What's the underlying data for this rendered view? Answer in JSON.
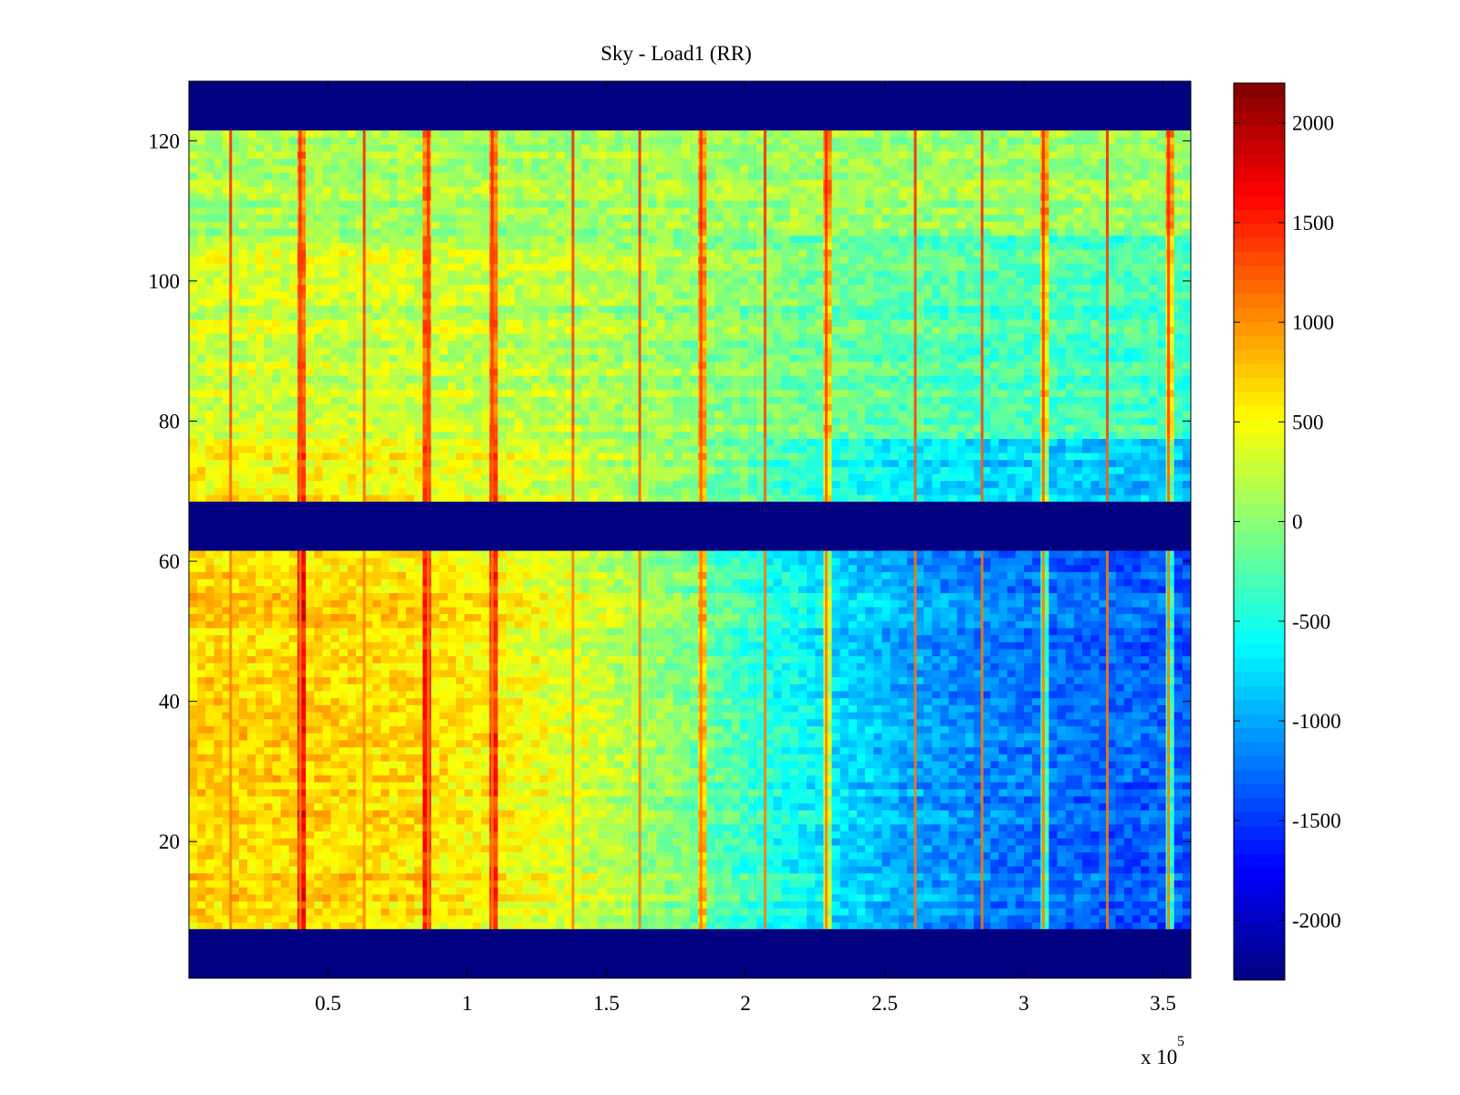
{
  "chart_data": {
    "type": "heatmap",
    "title": "Sky - Load1 (RR)",
    "xlabel": "",
    "ylabel": "",
    "x_axis": {
      "range": [
        0,
        360000
      ],
      "ticks": [
        50000,
        100000,
        150000,
        200000,
        250000,
        300000,
        350000
      ],
      "tick_labels": [
        "0.5",
        "1",
        "1.5",
        "2",
        "2.5",
        "3",
        "3.5"
      ],
      "exponent_label": "x 10",
      "exponent_power": "5"
    },
    "y_axis": {
      "range": [
        0.5,
        128.5
      ],
      "ticks": [
        20,
        40,
        60,
        80,
        100,
        120
      ],
      "tick_labels": [
        "20",
        "40",
        "60",
        "80",
        "100",
        "120"
      ]
    },
    "colorbar": {
      "colormap": "jet",
      "range": [
        -2300,
        2200
      ],
      "ticks": [
        -2000,
        -1500,
        -1000,
        -500,
        0,
        500,
        1000,
        1500,
        2000
      ],
      "tick_labels": [
        "-2000",
        "-1500",
        "-1000",
        "-500",
        "0",
        "500",
        "1000",
        "1500",
        "2000"
      ]
    },
    "masked_rows": [
      [
        0.5,
        7.5
      ],
      [
        61.5,
        68.5
      ],
      [
        121.5,
        128.5
      ]
    ],
    "masked_value": -2300,
    "row_groups": [
      {
        "rows": [
          7.5,
          61.5
        ],
        "left_level": 750,
        "right_level": -1350
      },
      {
        "rows": [
          68.5,
          77.5
        ],
        "left_level": 550,
        "right_level": -900
      },
      {
        "rows": [
          77.5,
          106.5
        ],
        "left_level": 300,
        "right_level": -350
      },
      {
        "rows": [
          106.5,
          121.5
        ],
        "left_level": 120,
        "right_level": 60
      }
    ],
    "stripe_x": [
      15000,
      40000,
      63000,
      86000,
      109000,
      138000,
      162000,
      184000,
      207000,
      229000,
      261000,
      285000,
      307000,
      330000,
      352000
    ],
    "grid": false,
    "legend": "colorbar-right"
  }
}
